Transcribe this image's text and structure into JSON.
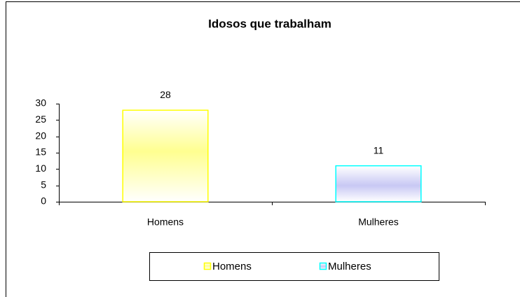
{
  "chart_data": {
    "type": "bar",
    "title": "Idosos que trabalham",
    "categories": [
      "Homens",
      "Mulheres"
    ],
    "values": [
      28,
      11
    ],
    "colors": [
      "#ffff00",
      "#00ffff"
    ],
    "ylim": [
      0,
      30
    ],
    "yticks": [
      0,
      5,
      10,
      15,
      20,
      25,
      30
    ],
    "legend": "bottom"
  }
}
